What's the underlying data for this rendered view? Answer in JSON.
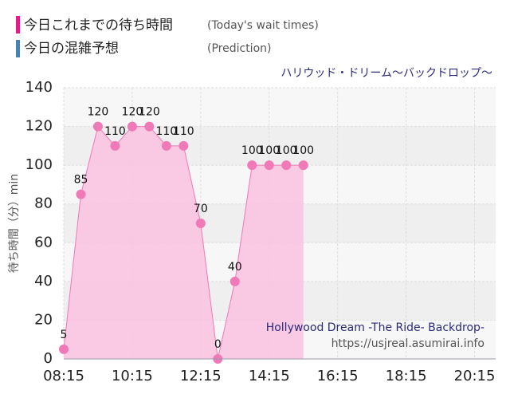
{
  "chart_data": {
    "type": "area",
    "subtitle": "ハリウッド・ドリーム～バックドロップ～",
    "ylabel": "待ち時間（分）min",
    "legend": [
      {
        "label": "今日これまでの待ち時間",
        "sublabel": "(Today's wait times)",
        "color": "#e8198b"
      },
      {
        "label": "今日の混雑予想",
        "sublabel": "(Prediction)",
        "color": "#4682b4"
      }
    ],
    "x": [
      "08:15",
      "08:45",
      "09:15",
      "09:45",
      "10:15",
      "10:45",
      "11:15",
      "11:45",
      "12:15",
      "12:45",
      "13:15",
      "13:45",
      "14:15",
      "14:45",
      "15:15"
    ],
    "series": [
      {
        "name": "今日これまでの待ち時間",
        "color": "#f07ab8",
        "values": [
          5,
          85,
          120,
          110,
          120,
          120,
          110,
          110,
          70,
          0,
          40,
          100,
          100,
          100,
          100
        ]
      }
    ],
    "xlim": [
      "08:15",
      "20:45"
    ],
    "xticks": [
      "08:15",
      "10:15",
      "12:15",
      "14:15",
      "16:15",
      "18:15",
      "20:15"
    ],
    "ylim": [
      0,
      140
    ],
    "yticks": [
      0,
      20,
      40,
      60,
      80,
      100,
      120,
      140
    ],
    "grid": true,
    "annotations": [
      "Hollywood Dream -The Ride- Backdrop-",
      "https://usjreal.asumirai.info"
    ]
  }
}
